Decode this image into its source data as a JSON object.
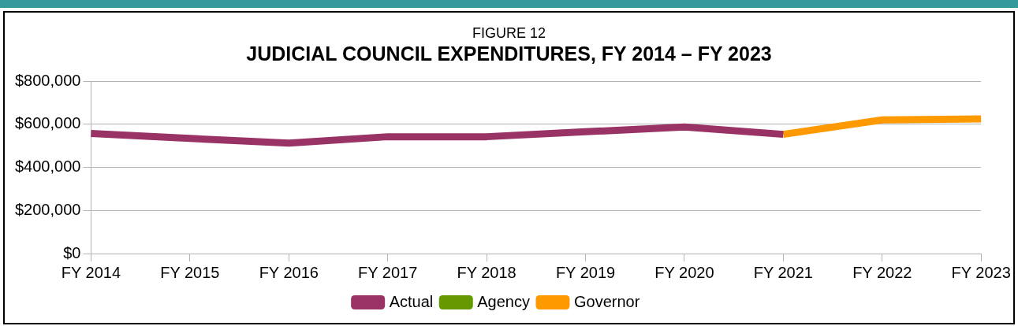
{
  "chart_data": {
    "type": "line",
    "title": "JUDICIAL COUNCIL EXPENDITURES, FY 2014 – FY 2023",
    "subtitle": "FIGURE 12",
    "categories": [
      "FY 2014",
      "FY 2015",
      "FY 2016",
      "FY 2017",
      "FY 2018",
      "FY 2019",
      "FY 2020",
      "FY 2021",
      "FY 2022",
      "FY 2023"
    ],
    "series": [
      {
        "name": "Actual",
        "color": "#993366",
        "values": [
          557000,
          534000,
          512000,
          542000,
          542000,
          565000,
          587000,
          553000,
          null,
          null
        ]
      },
      {
        "name": "Agency",
        "color": "#669900",
        "values": [
          null,
          null,
          null,
          null,
          null,
          null,
          null,
          null,
          null,
          null
        ]
      },
      {
        "name": "Governor",
        "color": "#ff9900",
        "values": [
          null,
          null,
          null,
          null,
          null,
          null,
          null,
          553000,
          620000,
          625000
        ]
      }
    ],
    "ylim": [
      0,
      800000
    ],
    "yticks": [
      {
        "value": 0,
        "label": "$0"
      },
      {
        "value": 200000,
        "label": "$200,000"
      },
      {
        "value": 400000,
        "label": "$400,000"
      },
      {
        "value": 600000,
        "label": "$600,000"
      },
      {
        "value": 800000,
        "label": "$800,000"
      }
    ],
    "grid": "y",
    "legend": "bottom",
    "marker": "none",
    "line_style": "solid"
  }
}
